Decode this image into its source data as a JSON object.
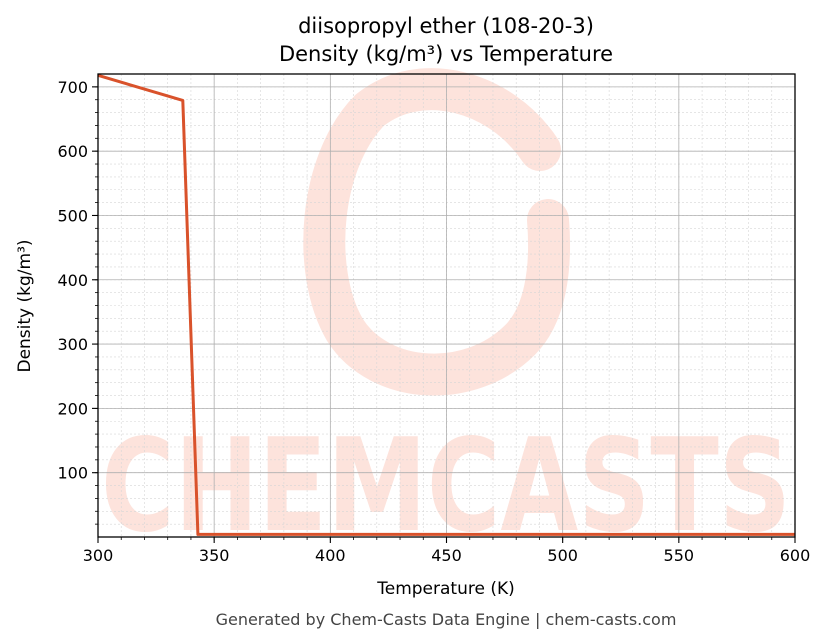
{
  "chart_data": {
    "type": "line",
    "title": "diisopropyl ether (108-20-3)",
    "subtitle": "Density (kg/m³) vs Temperature",
    "xlabel": "Temperature (K)",
    "ylabel": "Density (kg/m³)",
    "xlim": [
      300,
      600
    ],
    "ylim": [
      0,
      720
    ],
    "xticks": [
      300,
      350,
      400,
      450,
      500,
      550,
      600
    ],
    "yticks": [
      100,
      200,
      300,
      400,
      500,
      600,
      700
    ],
    "grid": true,
    "line_color": "#d9522b",
    "series": [
      {
        "x": [
          300,
          336.5,
          343,
          600
        ],
        "y": [
          718,
          679,
          4,
          4
        ]
      }
    ]
  },
  "watermark": {
    "text": "CHEMCASTS",
    "color": "#fde3dc"
  },
  "footer": "Generated by Chem-Casts Data Engine | chem-casts.com"
}
